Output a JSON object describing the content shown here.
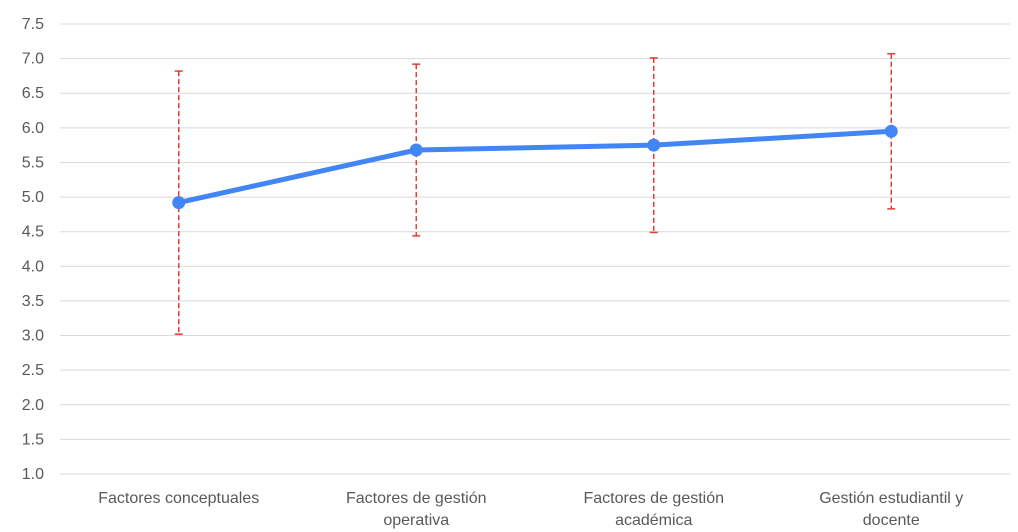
{
  "chart_data": {
    "type": "line",
    "categories": [
      [
        "Factores conceptuales"
      ],
      [
        "Factores de gestión",
        "operativa"
      ],
      [
        "Factores de gestión",
        "académica"
      ],
      [
        "Gestión estudiantil y",
        "docente"
      ]
    ],
    "series": [
      {
        "values": [
          4.92,
          5.68,
          5.75,
          5.95
        ],
        "error_upper": [
          6.82,
          6.92,
          7.01,
          7.07
        ],
        "error_lower": [
          3.02,
          4.44,
          4.49,
          4.83
        ],
        "color": "#4285f4",
        "error_color": "#e03c31"
      }
    ],
    "y_ticks": [
      "1.0",
      "1.5",
      "2.0",
      "2.5",
      "3.0",
      "3.5",
      "4.0",
      "4.5",
      "5.0",
      "5.5",
      "6.0",
      "6.5",
      "7.0",
      "7.5"
    ],
    "ylim": [
      1.0,
      7.5
    ],
    "grid": true,
    "legend": "none"
  }
}
